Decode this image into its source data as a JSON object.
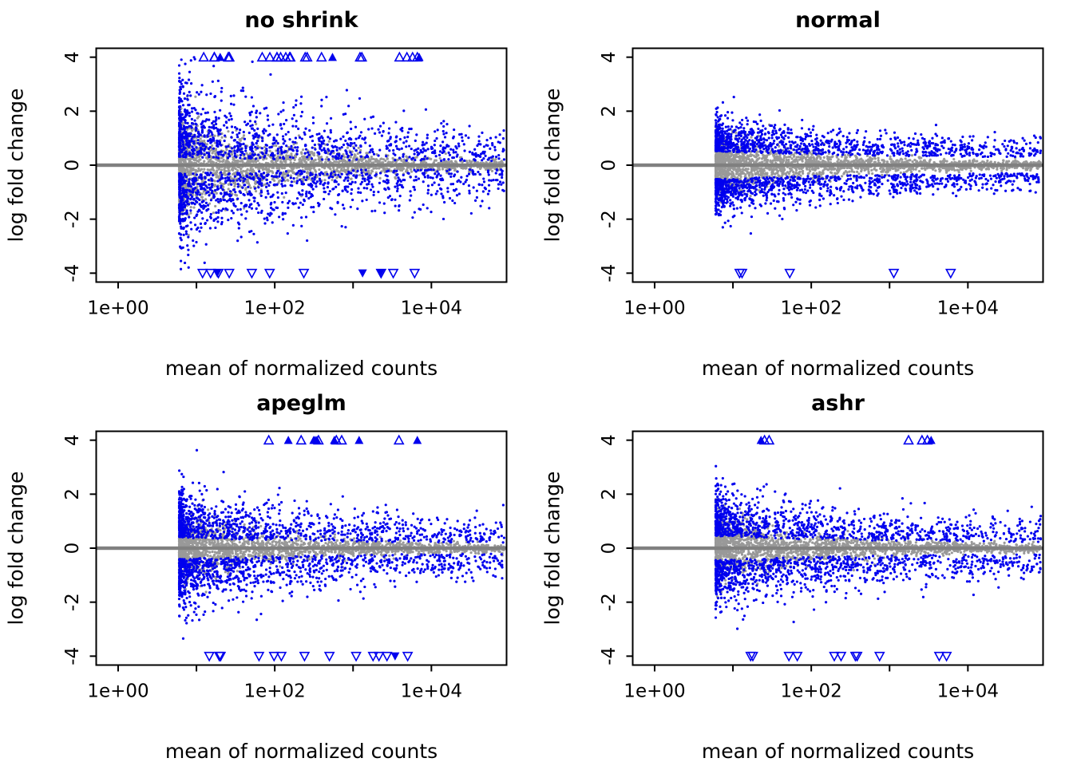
{
  "figure": {
    "background": "#ffffff",
    "rows": 2,
    "cols": 2
  },
  "chart_data": [
    {
      "type": "scatter",
      "title": "no shrink",
      "xlabel": "mean of normalized counts",
      "ylabel": "log fold change",
      "x_scale": "log10",
      "xlim_log10": [
        -0.28,
        4.96
      ],
      "ylim": [
        -4.33,
        4.33
      ],
      "x_ticks": [
        {
          "log10": 0,
          "label": "1e+00"
        },
        {
          "log10": 2,
          "label": "1e+02"
        },
        {
          "log10": 4,
          "label": "1e+04"
        }
      ],
      "x_minor_ticks_log10": [
        1,
        3
      ],
      "y_ticks": [
        {
          "value": 4,
          "label": "4"
        },
        {
          "value": 2,
          "label": "2"
        },
        {
          "value": 0,
          "label": "0"
        },
        {
          "value": -2,
          "label": "-2"
        },
        {
          "value": -4,
          "label": "-4"
        }
      ],
      "grid": false,
      "legend": "none",
      "colors": {
        "nonsig": "#999999",
        "sig": "#0000ee",
        "zero_line": "#808080",
        "box": "#000000"
      },
      "gen": {
        "seed": 101,
        "n_gray": 2100,
        "n_blue": 2000,
        "x_min": 0.78,
        "x_span": 4.15,
        "x_pow": 2.1,
        "gray_sd": 0.8,
        "gray_decay": 1.5,
        "gray_floor": 0.05,
        "blue_base": 0.3,
        "blue_sd": 1.35,
        "taper_min": 0.45,
        "taper_decay": 1.7,
        "outlier_frac": 0.02,
        "outlier_mult": 1.5,
        "clip": 4,
        "tri_up": 26,
        "tri_down": 13
      }
    },
    {
      "type": "scatter",
      "title": "normal",
      "xlabel": "mean of normalized counts",
      "ylabel": "log fold change",
      "x_scale": "log10",
      "xlim_log10": [
        -0.28,
        4.96
      ],
      "ylim": [
        -4.33,
        4.33
      ],
      "x_ticks": [
        {
          "log10": 0,
          "label": "1e+00"
        },
        {
          "log10": 2,
          "label": "1e+02"
        },
        {
          "log10": 4,
          "label": "1e+04"
        }
      ],
      "x_minor_ticks_log10": [
        1,
        3
      ],
      "y_ticks": [
        {
          "value": 4,
          "label": "4"
        },
        {
          "value": 2,
          "label": "2"
        },
        {
          "value": 0,
          "label": "0"
        },
        {
          "value": -2,
          "label": "-2"
        },
        {
          "value": -4,
          "label": "-4"
        }
      ],
      "grid": false,
      "legend": "none",
      "colors": {
        "nonsig": "#999999",
        "sig": "#0000ee",
        "zero_line": "#808080",
        "box": "#000000"
      },
      "gen": {
        "seed": 202,
        "n_gray": 2100,
        "n_blue": 2000,
        "x_min": 0.78,
        "x_span": 4.15,
        "x_pow": 2.1,
        "gray_sd": 0.5,
        "gray_decay": 1.4,
        "gray_floor": 0.05,
        "blue_base": 0.52,
        "blue_sd": 0.6,
        "taper_min": 0.5,
        "taper_decay": 2.0,
        "outlier_frac": 0.01,
        "outlier_mult": 1.7,
        "clip": 4,
        "tri_up": 0,
        "tri_down": 5
      }
    },
    {
      "type": "scatter",
      "title": "apeglm",
      "xlabel": "mean of normalized counts",
      "ylabel": "log fold change",
      "x_scale": "log10",
      "xlim_log10": [
        -0.28,
        4.96
      ],
      "ylim": [
        -4.33,
        4.33
      ],
      "x_ticks": [
        {
          "log10": 0,
          "label": "1e+00"
        },
        {
          "log10": 2,
          "label": "1e+02"
        },
        {
          "log10": 4,
          "label": "1e+04"
        }
      ],
      "x_minor_ticks_log10": [
        1,
        3
      ],
      "y_ticks": [
        {
          "value": 4,
          "label": "4"
        },
        {
          "value": 2,
          "label": "2"
        },
        {
          "value": 0,
          "label": "0"
        },
        {
          "value": -2,
          "label": "-2"
        },
        {
          "value": -4,
          "label": "-4"
        }
      ],
      "grid": false,
      "legend": "none",
      "colors": {
        "nonsig": "#999999",
        "sig": "#0000ee",
        "zero_line": "#808080",
        "box": "#000000"
      },
      "gen": {
        "seed": 303,
        "n_gray": 2100,
        "n_blue": 2000,
        "x_min": 0.78,
        "x_span": 4.15,
        "x_pow": 2.1,
        "gray_sd": 0.55,
        "gray_decay": 1.4,
        "gray_floor": 0.05,
        "blue_base": 0.4,
        "blue_sd": 0.9,
        "taper_min": 0.45,
        "taper_decay": 1.8,
        "outlier_frac": 0.012,
        "outlier_mult": 1.5,
        "clip": 4,
        "tri_up": 13,
        "tri_down": 14
      }
    },
    {
      "type": "scatter",
      "title": "ashr",
      "xlabel": "mean of normalized counts",
      "ylabel": "log fold change",
      "x_scale": "log10",
      "xlim_log10": [
        -0.28,
        4.96
      ],
      "ylim": [
        -4.33,
        4.33
      ],
      "x_ticks": [
        {
          "log10": 0,
          "label": "1e+00"
        },
        {
          "log10": 2,
          "label": "1e+02"
        },
        {
          "log10": 4,
          "label": "1e+04"
        }
      ],
      "x_minor_ticks_log10": [
        1,
        3
      ],
      "y_ticks": [
        {
          "value": 4,
          "label": "4"
        },
        {
          "value": 2,
          "label": "2"
        },
        {
          "value": 0,
          "label": "0"
        },
        {
          "value": -2,
          "label": "-2"
        },
        {
          "value": -4,
          "label": "-4"
        }
      ],
      "grid": false,
      "legend": "none",
      "colors": {
        "nonsig": "#999999",
        "sig": "#0000ee",
        "zero_line": "#808080",
        "box": "#000000"
      },
      "gen": {
        "seed": 404,
        "n_gray": 2100,
        "n_blue": 2000,
        "x_min": 0.78,
        "x_span": 4.15,
        "x_pow": 2.1,
        "gray_sd": 0.55,
        "gray_decay": 1.4,
        "gray_floor": 0.05,
        "blue_base": 0.45,
        "blue_sd": 0.85,
        "taper_min": 0.45,
        "taper_decay": 1.8,
        "outlier_frac": 0.012,
        "outlier_mult": 1.5,
        "clip": 4,
        "tri_up": 7,
        "tri_down": 11
      }
    }
  ]
}
